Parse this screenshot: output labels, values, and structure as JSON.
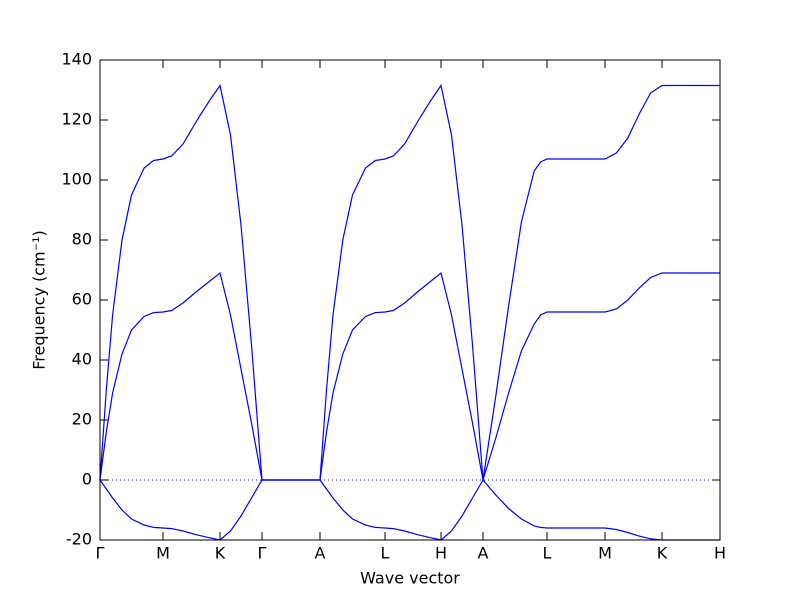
{
  "chart_data": {
    "type": "line",
    "xlabel": "Wave vector",
    "ylabel": "Frequency (cm⁻¹)",
    "x": [
      0,
      0.063,
      0.126,
      0.22,
      0.315,
      0.441,
      0.536,
      0.63,
      0.716,
      0.83,
      0.972,
      1.086,
      1.2,
      1.305,
      1.41,
      1.515,
      1.62,
      2.2,
      2.265,
      2.33,
      2.428,
      2.525,
      2.655,
      2.753,
      2.85,
      2.934,
      3.046,
      3.186,
      3.298,
      3.41,
      3.515,
      3.62,
      3.725,
      3.83,
      3.958,
      4.086,
      4.214,
      4.342,
      4.406,
      4.47,
      5.05,
      5.164,
      5.278,
      5.392,
      5.506,
      5.62,
      6.2
    ],
    "series": [
      {
        "color": "#0000ff",
        "values": [
          0,
          30,
          55,
          80,
          95,
          104,
          106.5,
          107,
          108,
          112,
          120,
          126,
          131.5,
          115,
          85,
          45,
          0,
          0,
          30,
          55,
          80,
          95,
          104,
          106.5,
          107,
          108,
          112,
          120,
          126,
          131.5,
          115,
          85,
          45,
          0,
          28,
          58,
          86,
          103,
          106,
          107,
          107,
          109,
          114,
          122,
          129,
          131.5,
          131.5
        ]
      },
      {
        "color": "#0000ff",
        "values": [
          0,
          16,
          29,
          42,
          50,
          54.5,
          55.8,
          56,
          56.5,
          59,
          63,
          66,
          69,
          55,
          37,
          19,
          0,
          0,
          16,
          29,
          42,
          50,
          54.5,
          55.8,
          56,
          56.5,
          59,
          63,
          66,
          69,
          55,
          37,
          19,
          0,
          14,
          29,
          43,
          52,
          55,
          56,
          56,
          57,
          60,
          64,
          67.5,
          69,
          69
        ]
      },
      {
        "color": "#0000ff",
        "values": [
          0,
          -3,
          -6,
          -10,
          -13,
          -15,
          -15.8,
          -16,
          -16.2,
          -17,
          -18.3,
          -19.2,
          -20,
          -17,
          -12,
          -6,
          0,
          0,
          -3,
          -6,
          -10,
          -13,
          -15,
          -15.8,
          -16,
          -16.2,
          -17,
          -18.3,
          -19.2,
          -20,
          -17,
          -12,
          -6,
          0,
          -5,
          -9.5,
          -13,
          -15.3,
          -15.8,
          -16,
          -16,
          -16.5,
          -17.5,
          -18.7,
          -19.6,
          -20,
          -20
        ]
      }
    ],
    "xlim": [
      0,
      6.2
    ],
    "xticks": [
      {
        "value": 0,
        "label": "Γ"
      },
      {
        "value": 0.63,
        "label": "M"
      },
      {
        "value": 1.2,
        "label": "K"
      },
      {
        "value": 1.62,
        "label": "Γ"
      },
      {
        "value": 2.2,
        "label": "A"
      },
      {
        "value": 2.85,
        "label": "L"
      },
      {
        "value": 3.41,
        "label": "H"
      },
      {
        "value": 3.83,
        "label": "A"
      },
      {
        "value": 4.47,
        "label": "L"
      },
      {
        "value": 5.05,
        "label": "M"
      },
      {
        "value": 5.62,
        "label": "K"
      },
      {
        "value": 6.2,
        "label": "H"
      }
    ],
    "ylim": [
      -20,
      140
    ],
    "yticks": [
      -20,
      0,
      20,
      40,
      60,
      80,
      100,
      120,
      140
    ],
    "hline": 0,
    "hline_color": "#0000ff"
  }
}
